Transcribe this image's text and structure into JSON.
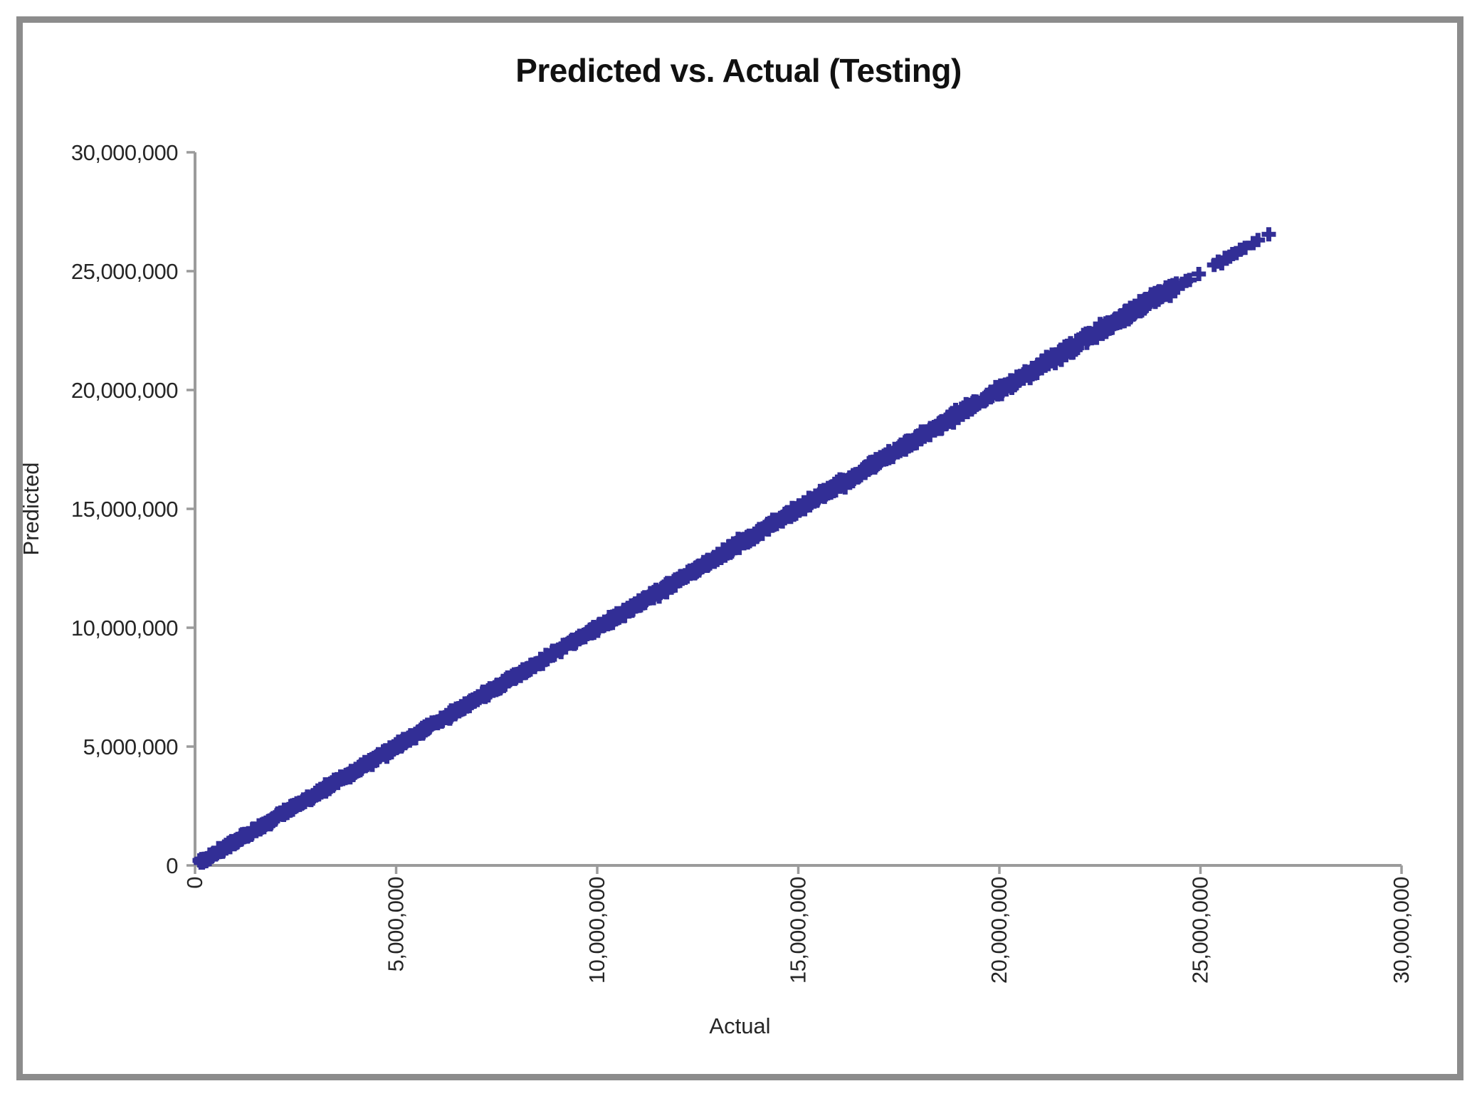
{
  "frame": {
    "border_color": "#8C8C8C"
  },
  "chart_data": {
    "type": "scatter",
    "title": "Predicted vs. Actual (Testing)",
    "xlabel": "Actual",
    "ylabel": "Predicted",
    "xlim": [
      0,
      30000000
    ],
    "ylim": [
      0,
      30000000
    ],
    "x_ticks": [
      0,
      5000000,
      10000000,
      15000000,
      20000000,
      25000000,
      30000000
    ],
    "x_tick_labels": [
      "0",
      "5,000,000",
      "10,000,000",
      "15,000,000",
      "20,000,000",
      "25,000,000",
      "30,000,000"
    ],
    "y_ticks": [
      0,
      5000000,
      10000000,
      15000000,
      20000000,
      25000000,
      30000000
    ],
    "y_tick_labels": [
      "0",
      "5,000,000",
      "10,000,000",
      "15,000,000",
      "20,000,000",
      "25,000,000",
      "30,000,000"
    ],
    "grid": false,
    "legend": false,
    "axis_color": "#9B9B9B",
    "text_color": "#262626",
    "marker": {
      "shape": "plus",
      "color": "#322E96",
      "size": 20,
      "stroke_width": 7
    },
    "series": [
      {
        "name": "Predicted vs Actual (Testing)",
        "relation": "y approximately equals x",
        "dense_band": {
          "x_min": 100000,
          "x_max": 24450000,
          "count": 1600,
          "noise_amplitude": 300000,
          "seed": 7
        },
        "tail_points": [
          [
            24550000,
            24470000
          ],
          [
            24640000,
            24590000
          ],
          [
            24730000,
            24630000
          ],
          [
            24960000,
            24880000
          ],
          [
            25340000,
            25260000
          ],
          [
            25440000,
            25400000
          ],
          [
            25530000,
            25330000
          ],
          [
            25610000,
            25560000
          ],
          [
            25730000,
            25610000
          ],
          [
            25800000,
            25720000
          ],
          [
            25890000,
            25760000
          ],
          [
            25990000,
            25900000
          ],
          [
            26110000,
            25980000
          ],
          [
            26310000,
            26180000
          ],
          [
            26430000,
            26310000
          ],
          [
            26700000,
            26550000
          ]
        ]
      }
    ]
  }
}
